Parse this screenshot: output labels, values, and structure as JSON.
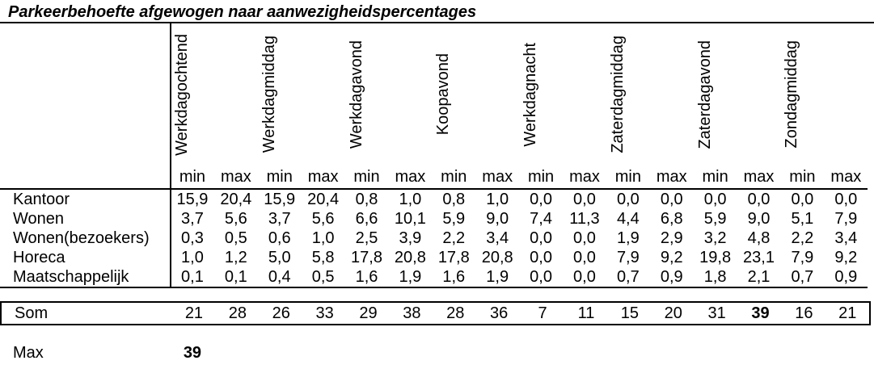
{
  "title": "Parkeerbehoefte afgewogen naar aanwezigheidspercentages",
  "table": {
    "column_groups": [
      "Werkdagochtend",
      "Werkdagmiddag",
      "Werkdagavond",
      "Koopavond",
      "Werkdagnacht",
      "Zaterdagmiddag",
      "Zaterdagavond",
      "Zondagmiddag"
    ],
    "sub_min": "min",
    "sub_max": "max",
    "rows": [
      {
        "label": "Kantoor",
        "values": [
          "15,9",
          "20,4",
          "15,9",
          "20,4",
          "0,8",
          "1,0",
          "0,8",
          "1,0",
          "0,0",
          "0,0",
          "0,0",
          "0,0",
          "0,0",
          "0,0",
          "0,0",
          "0,0"
        ]
      },
      {
        "label": "Wonen",
        "values": [
          "3,7",
          "5,6",
          "3,7",
          "5,6",
          "6,6",
          "10,1",
          "5,9",
          "9,0",
          "7,4",
          "11,3",
          "4,4",
          "6,8",
          "5,9",
          "9,0",
          "5,1",
          "7,9"
        ]
      },
      {
        "label": "Wonen(bezoekers)",
        "values": [
          "0,3",
          "0,5",
          "0,6",
          "1,0",
          "2,5",
          "3,9",
          "2,2",
          "3,4",
          "0,0",
          "0,0",
          "1,9",
          "2,9",
          "3,2",
          "4,8",
          "2,2",
          "3,4"
        ]
      },
      {
        "label": "Horeca",
        "values": [
          "1,0",
          "1,2",
          "5,0",
          "5,8",
          "17,8",
          "20,8",
          "17,8",
          "20,8",
          "0,0",
          "0,0",
          "7,9",
          "9,2",
          "19,8",
          "23,1",
          "7,9",
          "9,2"
        ]
      },
      {
        "label": "Maatschappelijk",
        "values": [
          "0,1",
          "0,1",
          "0,4",
          "0,5",
          "1,6",
          "1,9",
          "1,6",
          "1,9",
          "0,0",
          "0,0",
          "0,7",
          "0,9",
          "1,8",
          "2,1",
          "0,7",
          "0,9"
        ]
      }
    ],
    "som": {
      "label": "Som",
      "values": [
        "21",
        "28",
        "26",
        "33",
        "29",
        "38",
        "28",
        "36",
        "7",
        "11",
        "15",
        "20",
        "31",
        "39",
        "16",
        "21"
      ],
      "bold_index": 13
    },
    "max": {
      "label": "Max",
      "value": "39"
    }
  }
}
